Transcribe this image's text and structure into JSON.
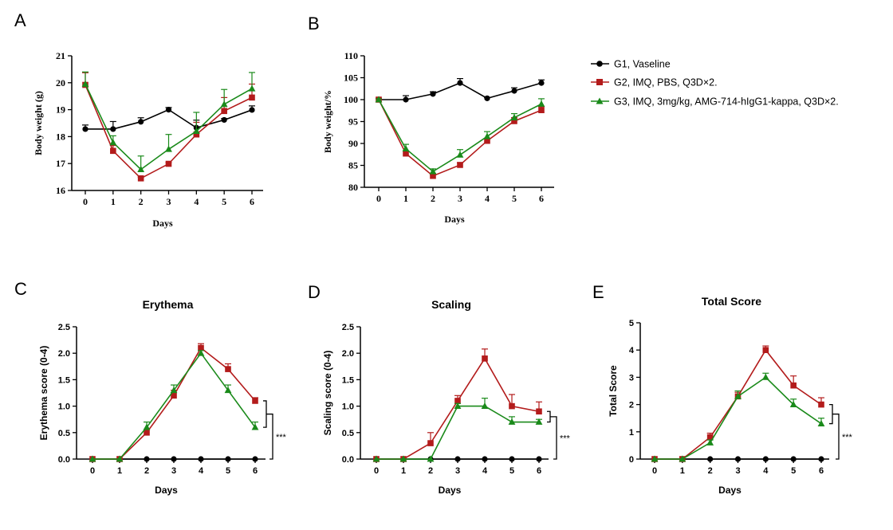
{
  "legend": {
    "entries": [
      {
        "label": "G1, Vaseline",
        "color": "#000000",
        "marker": "circle"
      },
      {
        "label": "G2, IMQ, PBS,  Q3D×2.",
        "color": "#b31b1b",
        "marker": "square"
      },
      {
        "label": "G3, IMQ, 3mg/kg, AMG-714-hIgG1-kappa, Q3D×2.",
        "color": "#1a8a1a",
        "marker": "triangle"
      }
    ]
  },
  "chart_data": [
    {
      "panel": "A",
      "type": "line",
      "title": "",
      "xlabel": "Days",
      "ylabel": "Body weight (g)",
      "x": [
        0,
        1,
        2,
        3,
        4,
        5,
        6
      ],
      "xticks": [
        "0",
        "1",
        "2",
        "3",
        "4",
        "5",
        "6"
      ],
      "ylim": [
        16,
        21
      ],
      "yticks": [
        "16",
        "17",
        "18",
        "19",
        "20",
        "21"
      ],
      "font": "serif",
      "series": [
        {
          "name": "G1, Vaseline",
          "color": "#000000",
          "marker": "circle",
          "values": [
            18.28,
            18.28,
            18.55,
            19.0,
            18.33,
            18.62,
            18.99
          ],
          "errors": [
            0.15,
            0.28,
            0.15,
            0.08,
            0.28,
            0.05,
            0.15
          ]
        },
        {
          "name": "G2, IMQ, PBS,  Q3D×2.",
          "color": "#b31b1b",
          "marker": "square",
          "values": [
            19.92,
            17.47,
            16.45,
            16.99,
            18.08,
            18.95,
            19.45
          ],
          "errors": [
            0.45,
            0.2,
            0.05,
            0.05,
            0.45,
            0.5,
            0.5
          ]
        },
        {
          "name": "G3, IMQ, 3mg/kg, AMG-714-hIgG1-kappa, Q3D×2.",
          "color": "#1a8a1a",
          "marker": "triangle",
          "values": [
            19.95,
            17.78,
            16.78,
            17.53,
            18.2,
            19.2,
            19.78
          ],
          "errors": [
            0.45,
            0.25,
            0.5,
            0.55,
            0.7,
            0.55,
            0.6
          ]
        }
      ]
    },
    {
      "panel": "B",
      "type": "line",
      "title": "",
      "xlabel": "Days",
      "ylabel": "Body weight/%",
      "x": [
        0,
        1,
        2,
        3,
        4,
        5,
        6
      ],
      "xticks": [
        "0",
        "1",
        "2",
        "3",
        "4",
        "5",
        "6"
      ],
      "ylim": [
        80,
        110
      ],
      "yticks": [
        "80",
        "85",
        "90",
        "95",
        "100",
        "105",
        "110"
      ],
      "font": "serif",
      "series": [
        {
          "name": "G1, Vaseline",
          "color": "#000000",
          "marker": "circle",
          "values": [
            100,
            100,
            101.3,
            103.8,
            100.3,
            102.0,
            103.8
          ],
          "errors": [
            0.3,
            0.9,
            0.5,
            1.0,
            0.2,
            0.7,
            0.7
          ]
        },
        {
          "name": "G2, IMQ, PBS,  Q3D×2.",
          "color": "#b31b1b",
          "marker": "square",
          "values": [
            100,
            87.7,
            82.6,
            85.1,
            90.6,
            95.1,
            97.6
          ],
          "errors": [
            0.2,
            0.6,
            0.3,
            0.5,
            0.5,
            0.8,
            0.8
          ]
        },
        {
          "name": "G3, IMQ, 3mg/kg, AMG-714-hIgG1-kappa, Q3D×2.",
          "color": "#1a8a1a",
          "marker": "triangle",
          "values": [
            100,
            88.8,
            83.6,
            87.4,
            91.6,
            95.9,
            99.0
          ],
          "errors": [
            0.2,
            1.0,
            0.6,
            1.2,
            1.1,
            0.9,
            1.2
          ]
        }
      ]
    },
    {
      "panel": "C",
      "type": "line",
      "title": "Erythema",
      "xlabel": "Days",
      "ylabel": "Erythema score (0-4)",
      "x": [
        0,
        1,
        2,
        3,
        4,
        5,
        6
      ],
      "xticks": [
        "0",
        "1",
        "2",
        "3",
        "4",
        "5",
        "6"
      ],
      "ylim": [
        0,
        2.5
      ],
      "yticks": [
        "0.0",
        "0.5",
        "1.0",
        "1.5",
        "2.0",
        "2.5"
      ],
      "font": "sans",
      "significance": "***",
      "series": [
        {
          "name": "G1, Vaseline",
          "color": "#000000",
          "marker": "circle",
          "values": [
            0,
            0,
            0,
            0,
            0,
            0,
            0
          ],
          "errors": [
            0,
            0,
            0,
            0,
            0,
            0,
            0
          ]
        },
        {
          "name": "G2, IMQ, PBS,  Q3D×2.",
          "color": "#b31b1b",
          "marker": "square",
          "values": [
            0,
            0,
            0.5,
            1.2,
            2.1,
            1.7,
            1.1
          ],
          "errors": [
            0,
            0,
            0.06,
            0.1,
            0.08,
            0.1,
            0.06
          ]
        },
        {
          "name": "G3, IMQ, 3mg/kg, AMG-714-hIgG1-kappa, Q3D×2.",
          "color": "#1a8a1a",
          "marker": "triangle",
          "values": [
            0,
            0,
            0.6,
            1.3,
            2.0,
            1.3,
            0.6
          ],
          "errors": [
            0,
            0,
            0.1,
            0.1,
            0.05,
            0.1,
            0.1
          ]
        }
      ]
    },
    {
      "panel": "D",
      "type": "line",
      "title": "Scaling",
      "xlabel": "Days",
      "ylabel": "Scaling score (0-4)",
      "x": [
        0,
        1,
        2,
        3,
        4,
        5,
        6
      ],
      "xticks": [
        "0",
        "1",
        "2",
        "3",
        "4",
        "5",
        "6"
      ],
      "ylim": [
        0,
        2.5
      ],
      "yticks": [
        "0.0",
        "0.5",
        "1.0",
        "1.5",
        "2.0",
        "2.5"
      ],
      "font": "sans",
      "significance": "***",
      "series": [
        {
          "name": "G1, Vaseline",
          "color": "#000000",
          "marker": "circle",
          "values": [
            0,
            0,
            0,
            0,
            0,
            0,
            0
          ],
          "errors": [
            0,
            0,
            0,
            0,
            0,
            0,
            0
          ]
        },
        {
          "name": "G2, IMQ, PBS,  Q3D×2.",
          "color": "#b31b1b",
          "marker": "square",
          "values": [
            0,
            0,
            0.3,
            1.1,
            1.9,
            1.0,
            0.9
          ],
          "errors": [
            0,
            0,
            0.2,
            0.1,
            0.18,
            0.22,
            0.18
          ]
        },
        {
          "name": "G3, IMQ, 3mg/kg, AMG-714-hIgG1-kappa, Q3D×2.",
          "color": "#1a8a1a",
          "marker": "triangle",
          "values": [
            0,
            0,
            0,
            1.0,
            1.0,
            0.7,
            0.7
          ],
          "errors": [
            0,
            0,
            0,
            0.05,
            0.15,
            0.1,
            0.05
          ]
        }
      ]
    },
    {
      "panel": "E",
      "type": "line",
      "title": "Total Score",
      "xlabel": "Days",
      "ylabel": "Total Score",
      "x": [
        0,
        1,
        2,
        3,
        4,
        5,
        6
      ],
      "xticks": [
        "0",
        "1",
        "2",
        "3",
        "4",
        "5",
        "6"
      ],
      "ylim": [
        0,
        5
      ],
      "yticks": [
        "0",
        "1",
        "2",
        "3",
        "4",
        "5"
      ],
      "font": "sans",
      "significance": "***",
      "series": [
        {
          "name": "G1, Vaseline",
          "color": "#000000",
          "marker": "circle",
          "values": [
            0,
            0,
            0,
            0,
            0,
            0,
            0
          ],
          "errors": [
            0,
            0,
            0,
            0,
            0,
            0,
            0
          ]
        },
        {
          "name": "G2, IMQ, PBS,  Q3D×2.",
          "color": "#b31b1b",
          "marker": "square",
          "values": [
            0,
            0,
            0.8,
            2.3,
            4.0,
            2.7,
            2.0
          ],
          "errors": [
            0,
            0,
            0.15,
            0.15,
            0.15,
            0.35,
            0.25
          ]
        },
        {
          "name": "G3, IMQ, 3mg/kg, AMG-714-hIgG1-kappa, Q3D×2.",
          "color": "#1a8a1a",
          "marker": "triangle",
          "values": [
            0,
            0,
            0.6,
            2.3,
            3.0,
            2.0,
            1.3
          ],
          "errors": [
            0,
            0,
            0.1,
            0.2,
            0.15,
            0.2,
            0.2
          ]
        }
      ]
    }
  ]
}
